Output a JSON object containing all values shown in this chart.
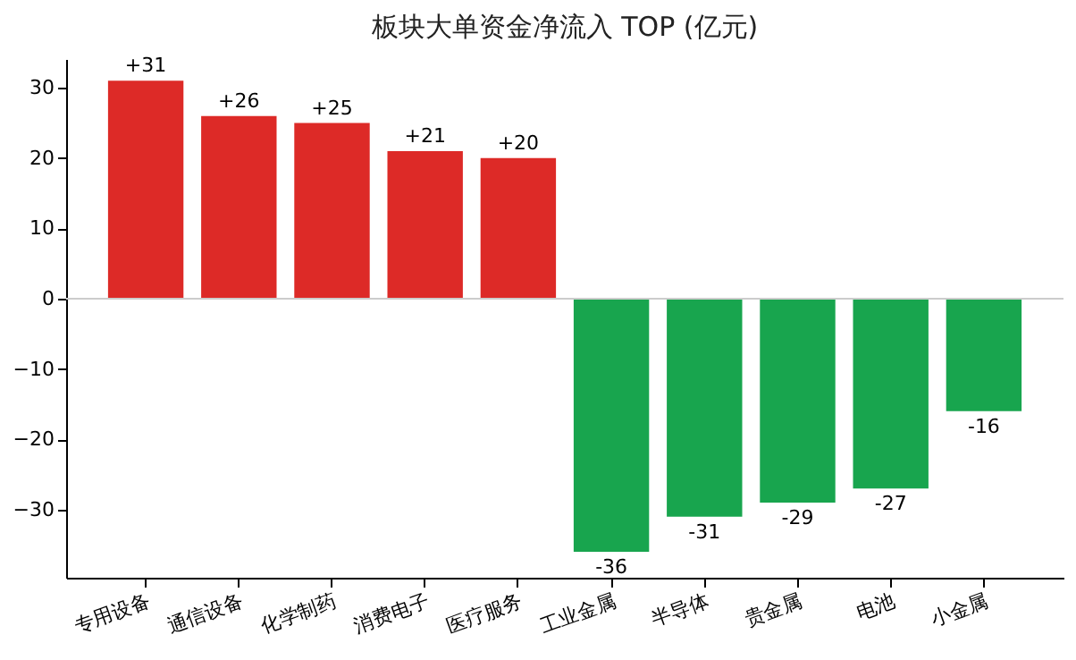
{
  "chart_data": {
    "type": "bar",
    "title": "板块大单资金净流入 TOP (亿元)",
    "categories": [
      "专用设备",
      "通信设备",
      "化学制药",
      "消费电子",
      "医疗服务",
      "工业金属",
      "半导体",
      "贵金属",
      "电池",
      "小金属"
    ],
    "values": [
      31,
      26,
      25,
      21,
      20,
      -36,
      -31,
      -29,
      -27,
      -16
    ],
    "colors": [
      "#dd2a27",
      "#dd2a27",
      "#dd2a27",
      "#dd2a27",
      "#dd2a27",
      "#18a54e",
      "#18a54e",
      "#18a54e",
      "#18a54e",
      "#18a54e"
    ],
    "value_labels": [
      "+31",
      "+26",
      "+25",
      "+21",
      "+20",
      "-36",
      "-31",
      "-29",
      "-27",
      "-16"
    ],
    "ylim": [
      -39.7,
      34.1
    ],
    "yticks": [
      -30,
      -20,
      -10,
      0,
      10,
      20,
      30
    ],
    "ref_lines": [
      {
        "axis": "y",
        "value": 0,
        "color": "#cccccc"
      }
    ],
    "grid": false
  }
}
